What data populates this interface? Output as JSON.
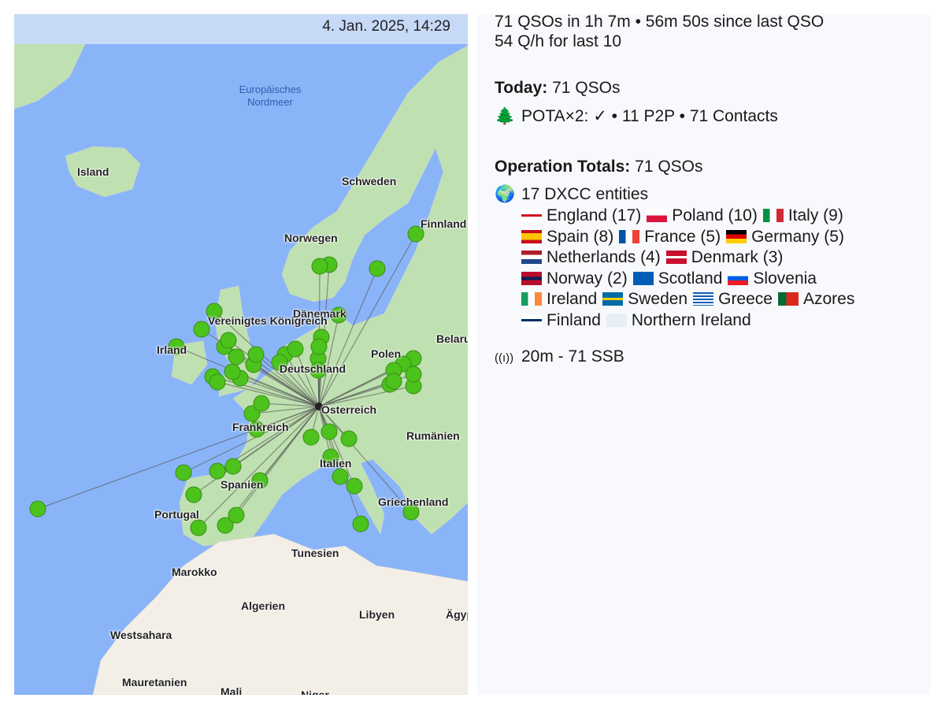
{
  "map": {
    "timestamp": "4. Jan. 2025, 14:29",
    "sea_label": "Europäisches Nordmeer",
    "labels": [
      "Island",
      "Schweden",
      "Finnland",
      "Norwegen",
      "Dänemark",
      "Vereinigtes Königreich",
      "Irland",
      "Polen",
      "Belarus",
      "Deutschland",
      "Österreich",
      "Frankreich",
      "Rumänien",
      "Italien",
      "Spanien",
      "Portugal",
      "Griechenland",
      "Tunesien",
      "Marokko",
      "Algerien",
      "Libyen",
      "Ägypten",
      "Westsahara",
      "Mauretanien",
      "Mali",
      "Niger"
    ],
    "marker_color": "#4cc21c",
    "home_marker_color": "#222222"
  },
  "stats": {
    "summary": "71 QSOs in 1h 7m • 56m 50s since last QSO",
    "rate": "54 Q/h for last 10",
    "today_label": "Today:",
    "today_value": "71 QSOs",
    "pota_icon": "tree-icon",
    "pota": "POTA×2: ✓ • 11 P2P • 71 Contacts",
    "totals_label": "Operation Totals:",
    "totals_value": "71 QSOs",
    "globe_icon": "globe-icon",
    "dxcc": "17 DXCC entities",
    "entities": [
      {
        "flag": "england",
        "text": "England (17)"
      },
      {
        "flag": "poland",
        "text": "Poland (10)"
      },
      {
        "flag": "italy",
        "text": "Italy (9)"
      },
      {
        "flag": "spain",
        "text": "Spain (8)"
      },
      {
        "flag": "france",
        "text": "France (5)"
      },
      {
        "flag": "germany",
        "text": "Germany (5)"
      },
      {
        "flag": "netherlands",
        "text": "Netherlands (4)"
      },
      {
        "flag": "denmark",
        "text": "Denmark (3)"
      },
      {
        "flag": "norway",
        "text": "Norway (2)"
      },
      {
        "flag": "scotland",
        "text": "Scotland"
      },
      {
        "flag": "slovenia",
        "text": "Slovenia"
      },
      {
        "flag": "ireland",
        "text": "Ireland"
      },
      {
        "flag": "sweden",
        "text": "Sweden"
      },
      {
        "flag": "greece",
        "text": "Greece"
      },
      {
        "flag": "portugal",
        "text": "Azores"
      },
      {
        "flag": "finland",
        "text": "Finland"
      },
      {
        "flag": "unknown",
        "text": "Northern Ireland"
      }
    ],
    "antenna_icon": "antenna-icon",
    "bands": "20m - 71 SSB"
  }
}
